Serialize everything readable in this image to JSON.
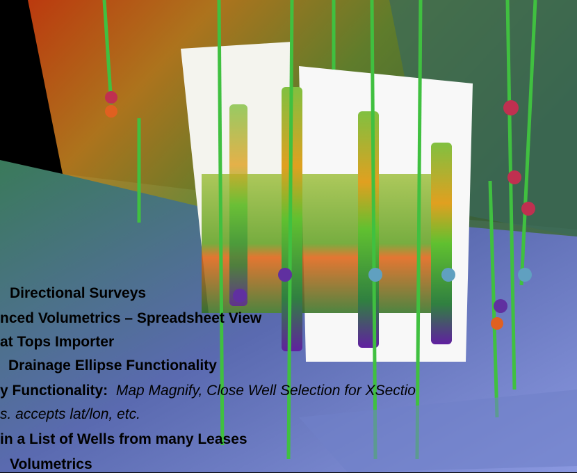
{
  "slide": {
    "items": [
      {
        "bold": "Directional Surveys"
      },
      {
        "bold": "nced Volumetrics – Spreadsheet View"
      },
      {
        "bold": "at Tops Importer"
      },
      {
        "bold": "Drainage Ellipse Functionality"
      },
      {
        "bold": "y Functionality:",
        "italic": "Map Magnify, Close Well Selection for XSectio"
      },
      {
        "italic": "s. accepts lat/lon, etc."
      },
      {
        "bold": "in a List of Wells from many Leases"
      },
      {
        "bold": "Volumetrics"
      }
    ]
  }
}
